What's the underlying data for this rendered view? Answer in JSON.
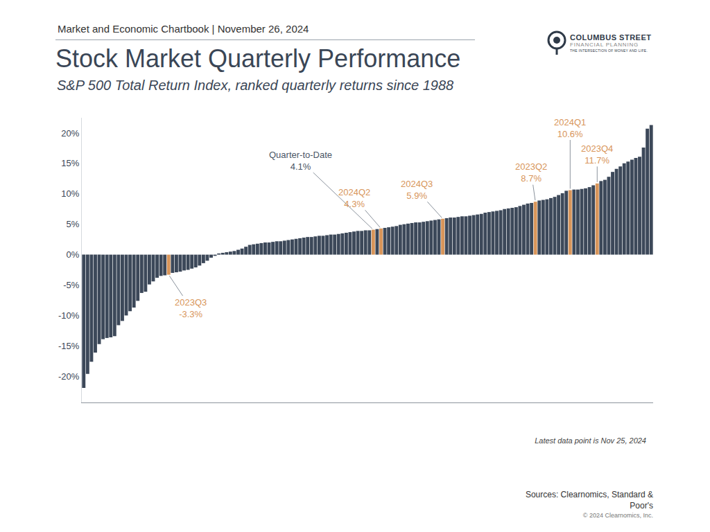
{
  "chart_data": {
    "type": "bar",
    "header": "Market and Economic Chartbook | November 26, 2024",
    "title": "Stock Market Quarterly Performance",
    "subtitle": "S&P 500 Total Return Index, ranked quarterly returns since 1988",
    "note": "Latest data point is Nov 25, 2024",
    "source": "Sources: Clearnomics, Standard & Poor's",
    "copyright": "© 2024 Clearnomics, Inc.",
    "logo": {
      "name": "COLUMBUS STREET",
      "subname": "FINANCIAL PLANNING",
      "tagline": "THE INTERSECTION OF MONEY AND LIFE."
    },
    "categories": [
      null,
      null,
      null,
      null,
      null,
      null,
      null,
      null,
      null,
      null,
      null,
      null,
      null,
      null,
      null,
      null,
      null,
      null,
      null,
      null,
      null,
      null,
      "2023Q3",
      null,
      null,
      null,
      null,
      null,
      null,
      null,
      null,
      null,
      null,
      null,
      null,
      null,
      null,
      null,
      null,
      null,
      null,
      null,
      null,
      null,
      null,
      null,
      null,
      null,
      null,
      null,
      null,
      null,
      null,
      null,
      null,
      null,
      null,
      null,
      null,
      null,
      null,
      null,
      null,
      null,
      null,
      null,
      null,
      null,
      null,
      null,
      null,
      null,
      null,
      null,
      null,
      "Quarter-to-Date",
      null,
      "2024Q2",
      null,
      null,
      null,
      null,
      null,
      null,
      null,
      null,
      null,
      null,
      null,
      null,
      null,
      null,
      null,
      "2024Q3",
      null,
      null,
      null,
      null,
      null,
      null,
      null,
      null,
      null,
      null,
      null,
      null,
      null,
      null,
      null,
      null,
      null,
      null,
      null,
      null,
      null,
      null,
      null,
      "2023Q2",
      null,
      null,
      null,
      null,
      null,
      null,
      null,
      null,
      "2024Q1",
      null,
      null,
      null,
      null,
      null,
      null,
      "2023Q4",
      null,
      null,
      null,
      null,
      null,
      null,
      null,
      null,
      null,
      null,
      null,
      null,
      null,
      null
    ],
    "values": [
      -21.9,
      -19.6,
      -17.6,
      -16.1,
      -14.7,
      -13.9,
      -13.7,
      -13.6,
      -13.4,
      -11.6,
      -10.9,
      -10.0,
      -9.3,
      -8.7,
      -7.6,
      -6.3,
      -6.1,
      -4.9,
      -4.4,
      -3.8,
      -3.5,
      -3.4,
      -3.3,
      -3.0,
      -2.9,
      -2.8,
      -2.6,
      -2.5,
      -2.3,
      -2.1,
      -1.8,
      -1.4,
      -1.0,
      -0.5,
      -0.2,
      0.2,
      0.3,
      0.4,
      0.5,
      0.6,
      0.8,
      1.0,
      1.3,
      1.6,
      1.7,
      1.8,
      1.9,
      2.0,
      2.0,
      2.1,
      2.2,
      2.2,
      2.3,
      2.4,
      2.5,
      2.6,
      2.7,
      2.8,
      2.9,
      2.9,
      3.0,
      3.1,
      3.1,
      3.2,
      3.3,
      3.3,
      3.4,
      3.5,
      3.6,
      3.7,
      3.8,
      3.9,
      3.9,
      4.0,
      4.0,
      4.1,
      4.2,
      4.3,
      4.4,
      4.5,
      4.6,
      4.7,
      4.9,
      5.0,
      5.1,
      5.2,
      5.3,
      5.3,
      5.4,
      5.5,
      5.6,
      5.7,
      5.8,
      5.9,
      6.0,
      6.1,
      6.1,
      6.2,
      6.3,
      6.3,
      6.4,
      6.5,
      6.6,
      6.7,
      6.9,
      7.0,
      7.1,
      7.2,
      7.3,
      7.5,
      7.6,
      7.7,
      7.8,
      8.0,
      8.2,
      8.4,
      8.5,
      8.7,
      8.9,
      9.0,
      9.1,
      9.3,
      9.5,
      9.8,
      10.1,
      10.5,
      10.6,
      10.7,
      10.7,
      10.8,
      10.9,
      11.1,
      11.4,
      11.7,
      12.1,
      12.3,
      12.8,
      13.6,
      14.1,
      14.5,
      15.0,
      15.3,
      15.6,
      15.9,
      16.1,
      17.6,
      20.7,
      21.3
    ],
    "value_labels": [
      null,
      null,
      null,
      null,
      null,
      null,
      null,
      null,
      null,
      null,
      null,
      null,
      null,
      null,
      null,
      null,
      null,
      null,
      null,
      null,
      null,
      null,
      "-3.3%",
      null,
      null,
      null,
      null,
      null,
      null,
      null,
      null,
      null,
      null,
      null,
      null,
      null,
      null,
      null,
      null,
      null,
      null,
      null,
      null,
      null,
      null,
      null,
      null,
      null,
      null,
      null,
      null,
      null,
      null,
      null,
      null,
      null,
      null,
      null,
      null,
      null,
      null,
      null,
      null,
      null,
      null,
      null,
      null,
      null,
      null,
      null,
      null,
      null,
      null,
      null,
      null,
      "4.1%",
      null,
      "4.3%",
      null,
      null,
      null,
      null,
      null,
      null,
      null,
      null,
      null,
      null,
      null,
      null,
      null,
      null,
      null,
      "5.9%",
      null,
      null,
      null,
      null,
      null,
      null,
      null,
      null,
      null,
      null,
      null,
      null,
      null,
      null,
      null,
      null,
      null,
      null,
      null,
      null,
      null,
      null,
      null,
      "8.7%",
      null,
      null,
      null,
      null,
      null,
      null,
      null,
      null,
      "10.6%",
      null,
      null,
      null,
      null,
      null,
      null,
      "11.7%",
      null,
      null,
      null,
      null,
      null,
      null,
      null,
      null,
      null,
      null,
      null,
      null,
      null,
      null
    ],
    "colors": [
      "#3c4859",
      "#3c4859",
      "#3c4859",
      "#3c4859",
      "#3c4859",
      "#3c4859",
      "#3c4859",
      "#3c4859",
      "#3c4859",
      "#3c4859",
      "#3c4859",
      "#3c4859",
      "#3c4859",
      "#3c4859",
      "#3c4859",
      "#3c4859",
      "#3c4859",
      "#3c4859",
      "#3c4859",
      "#3c4859",
      "#3c4859",
      "#3c4859",
      "#d8955a",
      "#3c4859",
      "#3c4859",
      "#3c4859",
      "#3c4859",
      "#3c4859",
      "#3c4859",
      "#3c4859",
      "#3c4859",
      "#3c4859",
      "#3c4859",
      "#3c4859",
      "#3c4859",
      "#3c4859",
      "#3c4859",
      "#3c4859",
      "#3c4859",
      "#3c4859",
      "#3c4859",
      "#3c4859",
      "#3c4859",
      "#3c4859",
      "#3c4859",
      "#3c4859",
      "#3c4859",
      "#3c4859",
      "#3c4859",
      "#3c4859",
      "#3c4859",
      "#3c4859",
      "#3c4859",
      "#3c4859",
      "#3c4859",
      "#3c4859",
      "#3c4859",
      "#3c4859",
      "#3c4859",
      "#3c4859",
      "#3c4859",
      "#3c4859",
      "#3c4859",
      "#3c4859",
      "#3c4859",
      "#3c4859",
      "#3c4859",
      "#3c4859",
      "#3c4859",
      "#3c4859",
      "#3c4859",
      "#3c4859",
      "#3c4859",
      "#3c4859",
      "#3c4859",
      "#d8955a",
      "#3c4859",
      "#d8955a",
      "#3c4859",
      "#3c4859",
      "#3c4859",
      "#3c4859",
      "#3c4859",
      "#3c4859",
      "#3c4859",
      "#3c4859",
      "#3c4859",
      "#3c4859",
      "#3c4859",
      "#3c4859",
      "#3c4859",
      "#3c4859",
      "#3c4859",
      "#d8955a",
      "#3c4859",
      "#3c4859",
      "#3c4859",
      "#3c4859",
      "#3c4859",
      "#3c4859",
      "#3c4859",
      "#3c4859",
      "#3c4859",
      "#3c4859",
      "#3c4859",
      "#3c4859",
      "#3c4859",
      "#3c4859",
      "#3c4859",
      "#3c4859",
      "#3c4859",
      "#3c4859",
      "#3c4859",
      "#3c4859",
      "#3c4859",
      "#3c4859",
      "#3c4859",
      "#d8955a",
      "#3c4859",
      "#3c4859",
      "#3c4859",
      "#3c4859",
      "#3c4859",
      "#3c4859",
      "#3c4859",
      "#3c4859",
      "#d8955a",
      "#3c4859",
      "#3c4859",
      "#3c4859",
      "#3c4859",
      "#3c4859",
      "#3c4859",
      "#d8955a",
      "#3c4859",
      "#3c4859",
      "#3c4859",
      "#3c4859",
      "#3c4859",
      "#3c4859",
      "#3c4859",
      "#3c4859",
      "#3c4859",
      "#3c4859",
      "#3c4859",
      "#3c4859",
      "#3c4859",
      "#3c4859"
    ],
    "ylim": [
      -24.3,
      22.5
    ],
    "yticks": [
      {
        "value": -20,
        "label": "-20%"
      },
      {
        "value": -15,
        "label": "-15%"
      },
      {
        "value": -10,
        "label": "-10%"
      },
      {
        "value": -5,
        "label": "-5%"
      },
      {
        "value": 0,
        "label": "0%"
      },
      {
        "value": 5,
        "label": "5%"
      },
      {
        "value": 10,
        "label": "10%"
      },
      {
        "value": 15,
        "label": "15%"
      },
      {
        "value": 20,
        "label": "20%"
      }
    ],
    "grid": false,
    "tick_labels": "y"
  }
}
